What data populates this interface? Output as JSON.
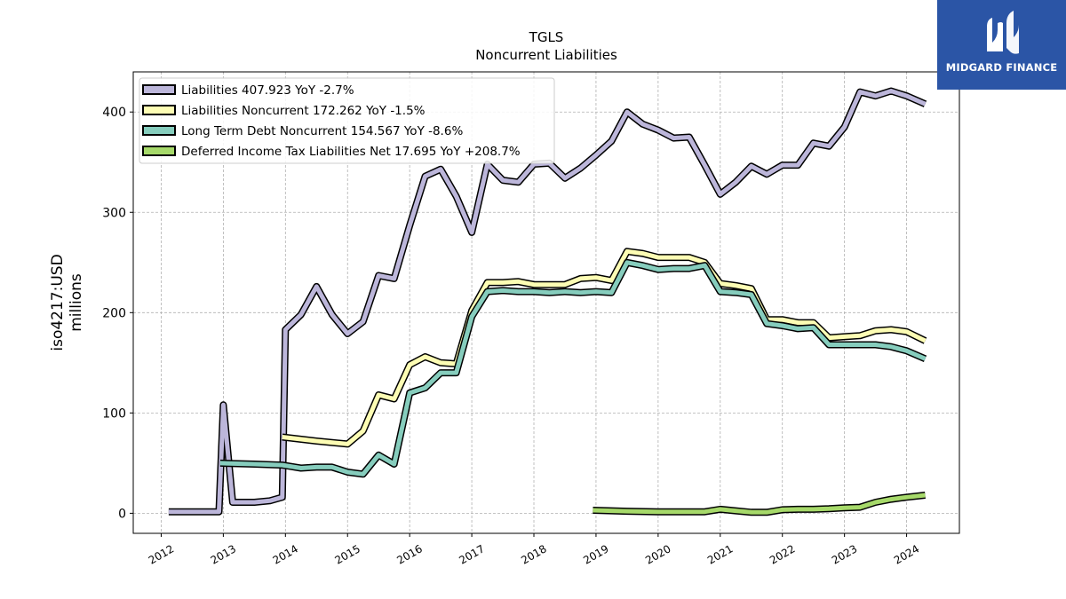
{
  "title": "TGLS",
  "subtitle": "Noncurrent  Liabilities",
  "brand": {
    "name": "MIDGARD FINANCE",
    "background": "#2b55a6"
  },
  "chart_data": {
    "type": "line",
    "ylabel": "iso4217:USD\nmillions",
    "xlabel": "",
    "xlim": [
      2011.55,
      2024.85
    ],
    "ylim": [
      -20,
      440
    ],
    "grid": true,
    "legend_position": "top-left",
    "x_ticks": [
      2012,
      2013,
      2014,
      2015,
      2016,
      2017,
      2018,
      2019,
      2020,
      2021,
      2022,
      2023,
      2024
    ],
    "y_ticks": [
      0,
      100,
      200,
      300,
      400
    ],
    "series": [
      {
        "name": "Liabilities",
        "legend": "Liabilities  407.923 YoY -2.7%",
        "color": "#bcb6da",
        "points": [
          [
            2012.12,
            1.5
          ],
          [
            2012.93,
            1.5
          ],
          [
            2013.0,
            108
          ],
          [
            2013.15,
            11
          ],
          [
            2013.5,
            11
          ],
          [
            2013.75,
            12.5
          ],
          [
            2013.95,
            16
          ],
          [
            2014.0,
            183
          ],
          [
            2014.25,
            198
          ],
          [
            2014.5,
            226
          ],
          [
            2014.75,
            198
          ],
          [
            2015.0,
            179
          ],
          [
            2015.25,
            191
          ],
          [
            2015.5,
            237
          ],
          [
            2015.75,
            234
          ],
          [
            2016.0,
            287
          ],
          [
            2016.25,
            336
          ],
          [
            2016.5,
            343
          ],
          [
            2016.75,
            316
          ],
          [
            2017.0,
            280
          ],
          [
            2017.25,
            348
          ],
          [
            2017.5,
            332
          ],
          [
            2017.75,
            330
          ],
          [
            2018.0,
            348
          ],
          [
            2018.25,
            349
          ],
          [
            2018.5,
            334
          ],
          [
            2018.75,
            344
          ],
          [
            2019.0,
            357
          ],
          [
            2019.25,
            371
          ],
          [
            2019.5,
            400
          ],
          [
            2019.75,
            388
          ],
          [
            2020.0,
            382
          ],
          [
            2020.25,
            374
          ],
          [
            2020.5,
            375
          ],
          [
            2020.75,
            347
          ],
          [
            2021.0,
            318
          ],
          [
            2021.25,
            330
          ],
          [
            2021.5,
            346
          ],
          [
            2021.75,
            338
          ],
          [
            2022.0,
            347
          ],
          [
            2022.25,
            347
          ],
          [
            2022.5,
            369
          ],
          [
            2022.75,
            366
          ],
          [
            2023.0,
            385
          ],
          [
            2023.25,
            420
          ],
          [
            2023.5,
            416
          ],
          [
            2023.75,
            421
          ],
          [
            2024.0,
            416
          ],
          [
            2024.3,
            408
          ]
        ]
      },
      {
        "name": "Liabilities Noncurrent",
        "legend": "Liabilities Noncurrent  172.262 YoY -1.5%",
        "color": "#fdfdb4",
        "points": [
          [
            2013.95,
            76
          ],
          [
            2014.5,
            72
          ],
          [
            2015.0,
            69
          ],
          [
            2015.25,
            82
          ],
          [
            2015.5,
            118
          ],
          [
            2015.75,
            114
          ],
          [
            2016.0,
            148
          ],
          [
            2016.25,
            156
          ],
          [
            2016.5,
            150
          ],
          [
            2016.75,
            149
          ],
          [
            2017.0,
            202
          ],
          [
            2017.25,
            230
          ],
          [
            2017.5,
            230
          ],
          [
            2017.75,
            231
          ],
          [
            2018.0,
            228
          ],
          [
            2018.25,
            228
          ],
          [
            2018.5,
            228
          ],
          [
            2018.75,
            234
          ],
          [
            2019.0,
            235
          ],
          [
            2019.25,
            232
          ],
          [
            2019.5,
            261
          ],
          [
            2019.75,
            259
          ],
          [
            2020.0,
            255
          ],
          [
            2020.25,
            255
          ],
          [
            2020.5,
            255
          ],
          [
            2020.75,
            250
          ],
          [
            2021.0,
            229
          ],
          [
            2021.25,
            227
          ],
          [
            2021.5,
            224
          ],
          [
            2021.75,
            193
          ],
          [
            2022.0,
            193
          ],
          [
            2022.25,
            190
          ],
          [
            2022.5,
            190
          ],
          [
            2022.75,
            175
          ],
          [
            2023.0,
            176
          ],
          [
            2023.25,
            177
          ],
          [
            2023.5,
            182
          ],
          [
            2023.75,
            183
          ],
          [
            2024.0,
            181
          ],
          [
            2024.3,
            172
          ]
        ]
      },
      {
        "name": "Long Term Debt Noncurrent",
        "legend": "Long Term Debt Noncurrent  154.567 YoY -8.6%",
        "color": "#86cdbd",
        "points": [
          [
            2012.95,
            50
          ],
          [
            2013.5,
            49
          ],
          [
            2013.95,
            48
          ],
          [
            2014.25,
            45
          ],
          [
            2014.5,
            46
          ],
          [
            2014.75,
            46
          ],
          [
            2015.0,
            41
          ],
          [
            2015.25,
            39
          ],
          [
            2015.5,
            58
          ],
          [
            2015.75,
            49
          ],
          [
            2016.0,
            120
          ],
          [
            2016.25,
            125
          ],
          [
            2016.5,
            140
          ],
          [
            2016.75,
            140
          ],
          [
            2017.0,
            196
          ],
          [
            2017.25,
            221
          ],
          [
            2017.5,
            222
          ],
          [
            2017.75,
            221
          ],
          [
            2018.0,
            221
          ],
          [
            2018.25,
            220
          ],
          [
            2018.5,
            221
          ],
          [
            2018.75,
            220
          ],
          [
            2019.0,
            221
          ],
          [
            2019.25,
            220
          ],
          [
            2019.5,
            250
          ],
          [
            2019.75,
            247
          ],
          [
            2020.0,
            243
          ],
          [
            2020.25,
            244
          ],
          [
            2020.5,
            244
          ],
          [
            2020.75,
            247
          ],
          [
            2021.0,
            221
          ],
          [
            2021.25,
            220
          ],
          [
            2021.5,
            218
          ],
          [
            2021.75,
            189
          ],
          [
            2022.0,
            187
          ],
          [
            2022.25,
            184
          ],
          [
            2022.5,
            185
          ],
          [
            2022.75,
            168
          ],
          [
            2023.0,
            168
          ],
          [
            2023.25,
            168
          ],
          [
            2023.5,
            168
          ],
          [
            2023.75,
            166
          ],
          [
            2024.0,
            162
          ],
          [
            2024.3,
            154
          ]
        ]
      },
      {
        "name": "Deferred Income Tax Liabilities Net",
        "legend": "Deferred Income Tax Liabilities Net  17.695 YoY +208.7%",
        "color": "#a6d96a",
        "points": [
          [
            2018.95,
            3
          ],
          [
            2019.5,
            2
          ],
          [
            2020.0,
            1.5
          ],
          [
            2020.5,
            1.5
          ],
          [
            2020.75,
            1.5
          ],
          [
            2021.0,
            4
          ],
          [
            2021.25,
            2.5
          ],
          [
            2021.5,
            1
          ],
          [
            2021.75,
            1
          ],
          [
            2022.0,
            3.5
          ],
          [
            2022.25,
            4
          ],
          [
            2022.5,
            4
          ],
          [
            2022.75,
            4.5
          ],
          [
            2023.0,
            5.5
          ],
          [
            2023.25,
            6
          ],
          [
            2023.5,
            11
          ],
          [
            2023.75,
            14
          ],
          [
            2024.0,
            16
          ],
          [
            2024.3,
            18
          ]
        ]
      }
    ]
  }
}
